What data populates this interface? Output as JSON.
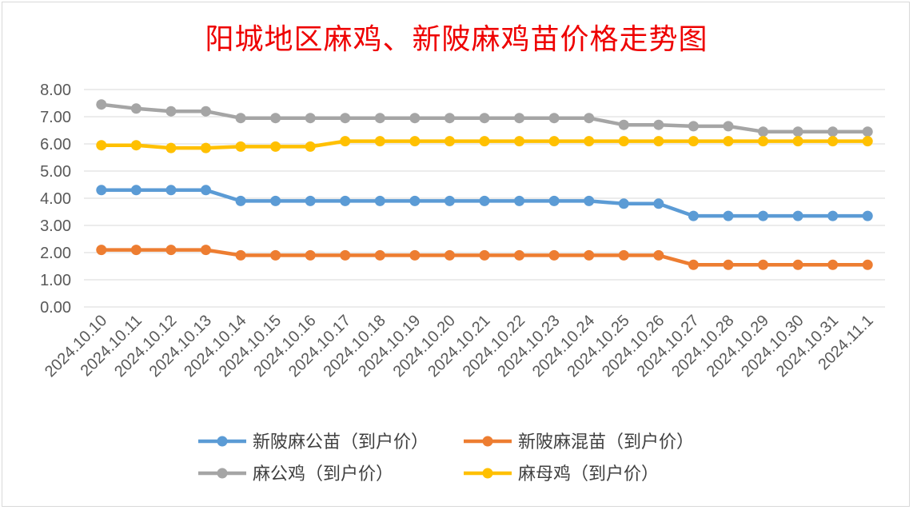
{
  "chart_data": {
    "type": "line",
    "title": "阳城地区麻鸡、新陂麻鸡苗价格走势图",
    "xlabel": "",
    "ylabel": "",
    "ylim": [
      0,
      8
    ],
    "yticks": [
      "0.00",
      "1.00",
      "2.00",
      "3.00",
      "4.00",
      "5.00",
      "6.00",
      "7.00",
      "8.00"
    ],
    "grid": true,
    "legend_position": "bottom",
    "categories": [
      "2024.10.10",
      "2024.10.11",
      "2024.10.12",
      "2024.10.13",
      "2024.10.14",
      "2024.10.15",
      "2024.10.16",
      "2024.10.17",
      "2024.10.18",
      "2024.10.19",
      "2024.10.20",
      "2024.10.21",
      "2024.10.22",
      "2024.10.23",
      "2024.10.24",
      "2024.10.25",
      "2024.10.26",
      "2024.10.27",
      "2024.10.28",
      "2024.10.29",
      "2024.10.30",
      "2024.10.31",
      "2024.11.1"
    ],
    "series": [
      {
        "name": "新陂麻公苗（到户价）",
        "color": "#5b9bd5",
        "values": [
          4.3,
          4.3,
          4.3,
          4.3,
          3.9,
          3.9,
          3.9,
          3.9,
          3.9,
          3.9,
          3.9,
          3.9,
          3.9,
          3.9,
          3.9,
          3.8,
          3.8,
          3.35,
          3.35,
          3.35,
          3.35,
          3.35,
          3.35
        ]
      },
      {
        "name": "新陂麻混苗（到户价）",
        "color": "#ed7d31",
        "values": [
          2.1,
          2.1,
          2.1,
          2.1,
          1.9,
          1.9,
          1.9,
          1.9,
          1.9,
          1.9,
          1.9,
          1.9,
          1.9,
          1.9,
          1.9,
          1.9,
          1.9,
          1.55,
          1.55,
          1.55,
          1.55,
          1.55,
          1.55
        ]
      },
      {
        "name": "麻公鸡（到户价）",
        "color": "#a5a5a5",
        "values": [
          7.45,
          7.3,
          7.2,
          7.2,
          6.95,
          6.95,
          6.95,
          6.95,
          6.95,
          6.95,
          6.95,
          6.95,
          6.95,
          6.95,
          6.95,
          6.7,
          6.7,
          6.65,
          6.65,
          6.45,
          6.45,
          6.45,
          6.45
        ]
      },
      {
        "name": "麻母鸡（到户价）",
        "color": "#ffc000",
        "values": [
          5.95,
          5.95,
          5.85,
          5.85,
          5.9,
          5.9,
          5.9,
          6.1,
          6.1,
          6.1,
          6.1,
          6.1,
          6.1,
          6.1,
          6.1,
          6.1,
          6.1,
          6.1,
          6.1,
          6.1,
          6.1,
          6.1,
          6.1
        ]
      }
    ]
  }
}
